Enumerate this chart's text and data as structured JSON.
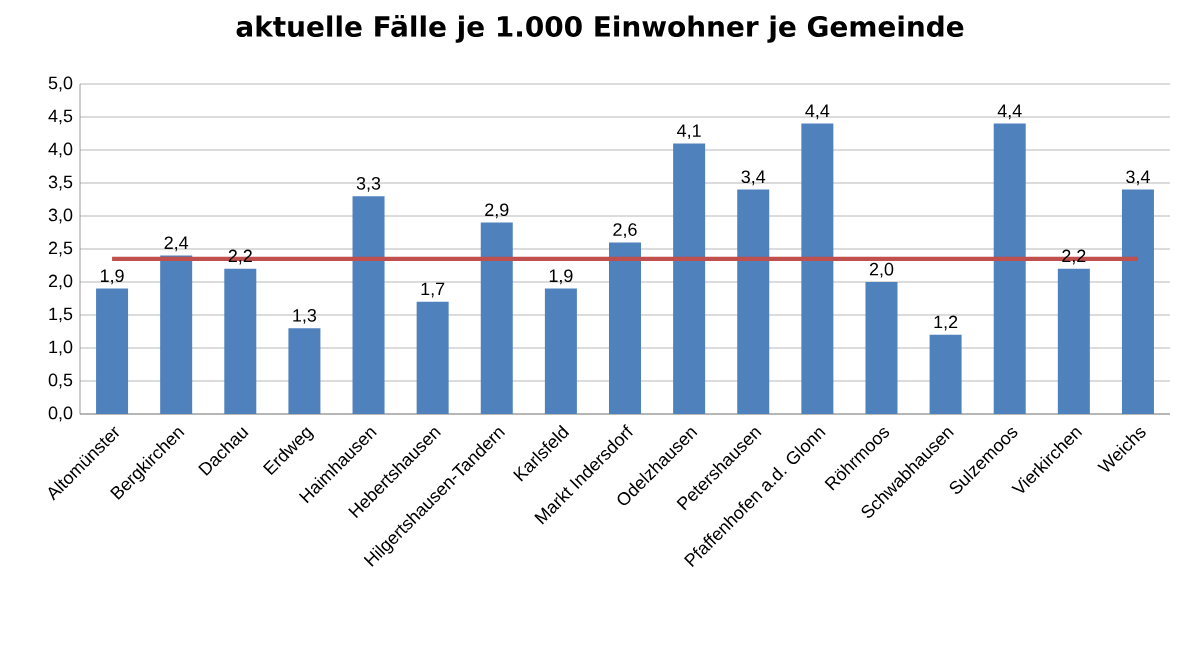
{
  "chart_data": {
    "type": "bar",
    "title": "aktuelle Fälle je 1.000 Einwohner je Gemeinde",
    "categories": [
      "Altomünster",
      "Bergkirchen",
      "Dachau",
      "Erdweg",
      "Haimhausen",
      "Hebertshausen",
      "Hilgertshausen-Tandern",
      "Karlsfeld",
      "Markt Indersdorf",
      "Odelzhausen",
      "Petershausen",
      "Pfaffenhofen a.d. Glonn",
      "Röhrmoos",
      "Schwabhausen",
      "Sulzemoos",
      "Vierkirchen",
      "Weichs"
    ],
    "values": [
      1.9,
      2.4,
      2.2,
      1.3,
      3.3,
      1.7,
      2.9,
      1.9,
      2.6,
      4.1,
      3.4,
      4.4,
      2.0,
      1.2,
      4.4,
      2.2,
      3.4
    ],
    "value_labels": [
      "1,9",
      "2,4",
      "2,2",
      "1,3",
      "3,3",
      "1,7",
      "2,9",
      "1,9",
      "2,6",
      "4,1",
      "3,4",
      "4,4",
      "2,0",
      "1,2",
      "4,4",
      "2,2",
      "3,4"
    ],
    "color": "#4f81bd",
    "ylim": [
      0,
      5
    ],
    "yticks": [
      {
        "value": 0,
        "label": "0,0"
      },
      {
        "value": 0.5,
        "label": "0,5"
      },
      {
        "value": 1,
        "label": "1,0"
      },
      {
        "value": 1.5,
        "label": "1,5"
      },
      {
        "value": 2,
        "label": "2,0"
      },
      {
        "value": 2.5,
        "label": "2,5"
      },
      {
        "value": 3,
        "label": "3,0"
      },
      {
        "value": 3.5,
        "label": "3,5"
      },
      {
        "value": 4,
        "label": "4,0"
      },
      {
        "value": 4.5,
        "label": "4,5"
      },
      {
        "value": 5,
        "label": "5,0"
      }
    ],
    "grid": "y",
    "ref_lines": [
      {
        "axis": "y",
        "value": 2.35,
        "color": "#c0504d"
      }
    ]
  }
}
